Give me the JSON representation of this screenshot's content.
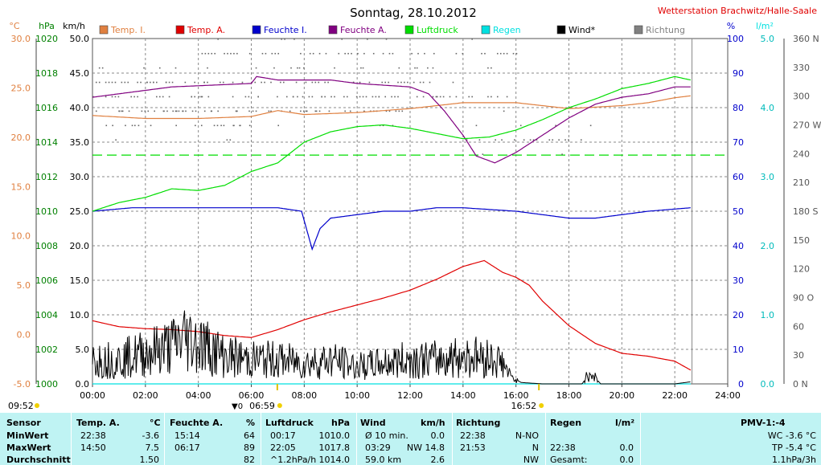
{
  "header": {
    "title": "Sonntag, 28.10.2012",
    "station": "Wetterstation Brachwitz/Halle-Saale"
  },
  "colors": {
    "temp_i": "#e08040",
    "temp_a": "#e00000",
    "feuchte_i": "#0000cc",
    "feuchte_a": "#800080",
    "luftdruck": "#00dd00",
    "regen": "#00e0e0",
    "wind": "#000000",
    "richtung": "#808080",
    "hpa_axis": "#008000",
    "cyan_axis": "#00bbbb"
  },
  "chart_data": {
    "type": "line",
    "title": "Sonntag, 28.10.2012",
    "x_ticks": [
      "00:00",
      "02:00",
      "04:00",
      "06:00",
      "08:00",
      "10:00",
      "12:00",
      "14:00",
      "16:00",
      "18:00",
      "20:00",
      "22:00",
      "24:00"
    ],
    "xlim_hours": [
      0,
      24
    ],
    "axes": {
      "temp_c": {
        "unit": "°C",
        "ticks": [
          "30.0",
          "25.0",
          "20.0",
          "15.0",
          "10.0",
          "5.0",
          "0.0",
          "-5.0"
        ],
        "range": [
          -5,
          30
        ]
      },
      "pressure": {
        "unit": "hPa",
        "ticks": [
          "1020",
          "1018",
          "1016",
          "1014",
          "1012",
          "1010",
          "1008",
          "1006",
          "1004",
          "1002",
          "1000"
        ],
        "range": [
          1000,
          1020
        ]
      },
      "wind_kmh": {
        "unit": "km/h",
        "ticks": [
          "50.0",
          "45.0",
          "40.0",
          "35.0",
          "30.0",
          "25.0",
          "20.0",
          "15.0",
          "10.0",
          "5.0",
          "0.0"
        ],
        "range": [
          0,
          50
        ]
      },
      "humidity": {
        "unit": "%",
        "ticks": [
          "100",
          "90",
          "80",
          "70",
          "60",
          "50",
          "40",
          "30",
          "20",
          "10",
          "0"
        ],
        "range": [
          0,
          100
        ]
      },
      "rain": {
        "unit": "l/m²",
        "ticks": [
          "5.0",
          "4.0",
          "3.0",
          "2.0",
          "1.0",
          "0.0"
        ],
        "range": [
          0,
          5
        ]
      },
      "direction": {
        "ticks": [
          "360 N",
          "330",
          "300",
          "270 W",
          "240",
          "210",
          "180 S",
          "150",
          "120",
          "90 O",
          "60",
          "30",
          "0 N"
        ],
        "range": [
          0,
          360
        ]
      }
    },
    "legend": [
      "Temp. I.",
      "Temp. A.",
      "Feuchte I.",
      "Feuchte A.",
      "Luftdruck",
      "Regen",
      "Wind*",
      "Richtung"
    ],
    "legend_placement": "top",
    "grid": true,
    "reference_line": {
      "name": "Luftdruck",
      "axis": "pressure",
      "value": 1013.25
    },
    "series": [
      {
        "name": "Temp. I.",
        "axis": "temp_c",
        "points": [
          [
            0,
            22.2
          ],
          [
            2,
            21.9
          ],
          [
            4,
            21.9
          ],
          [
            6,
            22.1
          ],
          [
            7,
            22.7
          ],
          [
            8,
            22.3
          ],
          [
            10,
            22.5
          ],
          [
            12,
            22.9
          ],
          [
            14,
            23.5
          ],
          [
            16,
            23.5
          ],
          [
            18,
            22.9
          ],
          [
            20,
            23.2
          ],
          [
            21,
            23.5
          ],
          [
            22,
            24.0
          ],
          [
            22.6,
            24.2
          ]
        ]
      },
      {
        "name": "Temp. A.",
        "axis": "temp_c",
        "points": [
          [
            0,
            1.4
          ],
          [
            1,
            0.8
          ],
          [
            2,
            0.6
          ],
          [
            3,
            0.5
          ],
          [
            4,
            0.3
          ],
          [
            5,
            -0.1
          ],
          [
            6,
            -0.3
          ],
          [
            7,
            0.5
          ],
          [
            8,
            1.5
          ],
          [
            9,
            2.3
          ],
          [
            10,
            3.0
          ],
          [
            11,
            3.7
          ],
          [
            12,
            4.5
          ],
          [
            13,
            5.6
          ],
          [
            14,
            6.9
          ],
          [
            14.8,
            7.5
          ],
          [
            15.5,
            6.3
          ],
          [
            16,
            5.8
          ],
          [
            16.5,
            5.0
          ],
          [
            17,
            3.4
          ],
          [
            18,
            0.9
          ],
          [
            19,
            -0.9
          ],
          [
            20,
            -1.9
          ],
          [
            21,
            -2.2
          ],
          [
            22,
            -2.7
          ],
          [
            22.6,
            -3.6
          ]
        ]
      },
      {
        "name": "Feuchte I.",
        "axis": "humidity",
        "points": [
          [
            0,
            50
          ],
          [
            1.5,
            51
          ],
          [
            7,
            51
          ],
          [
            7.9,
            50
          ],
          [
            8.3,
            39
          ],
          [
            8.6,
            45
          ],
          [
            9,
            48
          ],
          [
            10,
            49
          ],
          [
            11,
            50
          ],
          [
            12,
            50
          ],
          [
            13,
            51
          ],
          [
            14,
            51
          ],
          [
            16,
            50
          ],
          [
            17,
            49
          ],
          [
            18,
            48
          ],
          [
            19,
            48
          ],
          [
            20,
            49
          ],
          [
            21,
            50
          ],
          [
            22.6,
            51
          ]
        ]
      },
      {
        "name": "Feuchte A.",
        "axis": "humidity",
        "points": [
          [
            0,
            83
          ],
          [
            1,
            84
          ],
          [
            3,
            86
          ],
          [
            6,
            87
          ],
          [
            6.2,
            89
          ],
          [
            7,
            88
          ],
          [
            9,
            88
          ],
          [
            10,
            87
          ],
          [
            12,
            86
          ],
          [
            12.7,
            84
          ],
          [
            13.3,
            79
          ],
          [
            14,
            72
          ],
          [
            14.5,
            66
          ],
          [
            15.2,
            64
          ],
          [
            16,
            67
          ],
          [
            17,
            72
          ],
          [
            18,
            77
          ],
          [
            19,
            81
          ],
          [
            20,
            83
          ],
          [
            21,
            84
          ],
          [
            22,
            86
          ],
          [
            22.6,
            86
          ]
        ]
      },
      {
        "name": "Luftdruck",
        "axis": "pressure",
        "points": [
          [
            0,
            1010.0
          ],
          [
            1,
            1010.5
          ],
          [
            2,
            1010.8
          ],
          [
            3,
            1011.3
          ],
          [
            4,
            1011.2
          ],
          [
            5,
            1011.5
          ],
          [
            6,
            1012.3
          ],
          [
            7,
            1012.8
          ],
          [
            8,
            1014.0
          ],
          [
            9,
            1014.6
          ],
          [
            10,
            1014.9
          ],
          [
            11,
            1015.0
          ],
          [
            12,
            1014.8
          ],
          [
            13,
            1014.5
          ],
          [
            14,
            1014.2
          ],
          [
            15,
            1014.3
          ],
          [
            16,
            1014.7
          ],
          [
            17,
            1015.3
          ],
          [
            18,
            1016.0
          ],
          [
            19,
            1016.5
          ],
          [
            20,
            1017.1
          ],
          [
            21,
            1017.4
          ],
          [
            22,
            1017.8
          ],
          [
            22.6,
            1017.6
          ]
        ]
      },
      {
        "name": "Regen",
        "axis": "rain",
        "points": [
          [
            0,
            0
          ],
          [
            22.6,
            0
          ]
        ]
      },
      {
        "name": "Wind*",
        "axis": "wind_kmh",
        "noisy": true,
        "points": [
          [
            0,
            3.5
          ],
          [
            1,
            3.5
          ],
          [
            2,
            4.5
          ],
          [
            3,
            5.5
          ],
          [
            3.5,
            6.8
          ],
          [
            4,
            6.0
          ],
          [
            5,
            4.0
          ],
          [
            6,
            3.5
          ],
          [
            7,
            3.5
          ],
          [
            8,
            3.0
          ],
          [
            9,
            3.5
          ],
          [
            10,
            2.5
          ],
          [
            11,
            3.0
          ],
          [
            12,
            3.5
          ],
          [
            13,
            3.5
          ],
          [
            14,
            4.0
          ],
          [
            15,
            3.8
          ],
          [
            15.5,
            3.0
          ],
          [
            15.8,
            1.0
          ],
          [
            16.2,
            0.2
          ],
          [
            17,
            0
          ],
          [
            18.5,
            0
          ],
          [
            18.8,
            1.8
          ],
          [
            19.2,
            0
          ],
          [
            22,
            0
          ],
          [
            22.6,
            0.3
          ]
        ]
      }
    ],
    "sun_markers": {
      "sunrise": "06:59",
      "sunset": "16:52",
      "sunrise_prefix": "▼0",
      "day_length": "09:52"
    }
  },
  "table": {
    "headers": {
      "sensor": "Sensor",
      "temp": "Temp. A.",
      "temp_unit": "°C",
      "feuchte": "Feuchte A.",
      "feuchte_unit": "%",
      "luftdruck": "Luftdruck",
      "luftdruck_unit": "hPa",
      "wind": "Wind",
      "wind_unit": "km/h",
      "richtung": "Richtung",
      "regen": "Regen",
      "regen_unit": "l/m²",
      "pmv": "PMV-1:-4"
    },
    "rows": [
      {
        "label": "MinWert",
        "temp_time": "22:38",
        "temp_val": "-3.6",
        "feuchte_time": "15:14",
        "feuchte_val": "64",
        "luft_time": "00:17",
        "luft_val": "1010.0",
        "wind_time": "Ø 10 min.",
        "wind_val": "0.0",
        "richt_time": "22:38",
        "richt_val": "N-NO",
        "regen_time": "",
        "regen_val": "",
        "pmv": "WC -3.6 °C"
      },
      {
        "label": "MaxWert",
        "temp_time": "14:50",
        "temp_val": "7.5",
        "feuchte_time": "06:17",
        "feuchte_val": "89",
        "luft_time": "22:05",
        "luft_val": "1017.8",
        "wind_time": "03:29",
        "wind_val": "NW 14.8",
        "richt_time": "21:53",
        "richt_val": "N",
        "regen_time": "22:38",
        "regen_val": "0.0",
        "pmv": "TP -5.4 °C"
      },
      {
        "label": "Durchschnitt",
        "temp_time": "",
        "temp_val": "1.50",
        "feuchte_time": "",
        "feuchte_val": "82",
        "luft_time": "^1.2hPa/h",
        "luft_val": "1014.0",
        "wind_time": "59.0 km",
        "wind_val": "2.6",
        "richt_time": "",
        "richt_val": "NW",
        "regen_time": "Gesamt:",
        "regen_val": "0.0",
        "pmv": "1.1hPa/3h"
      }
    ]
  }
}
